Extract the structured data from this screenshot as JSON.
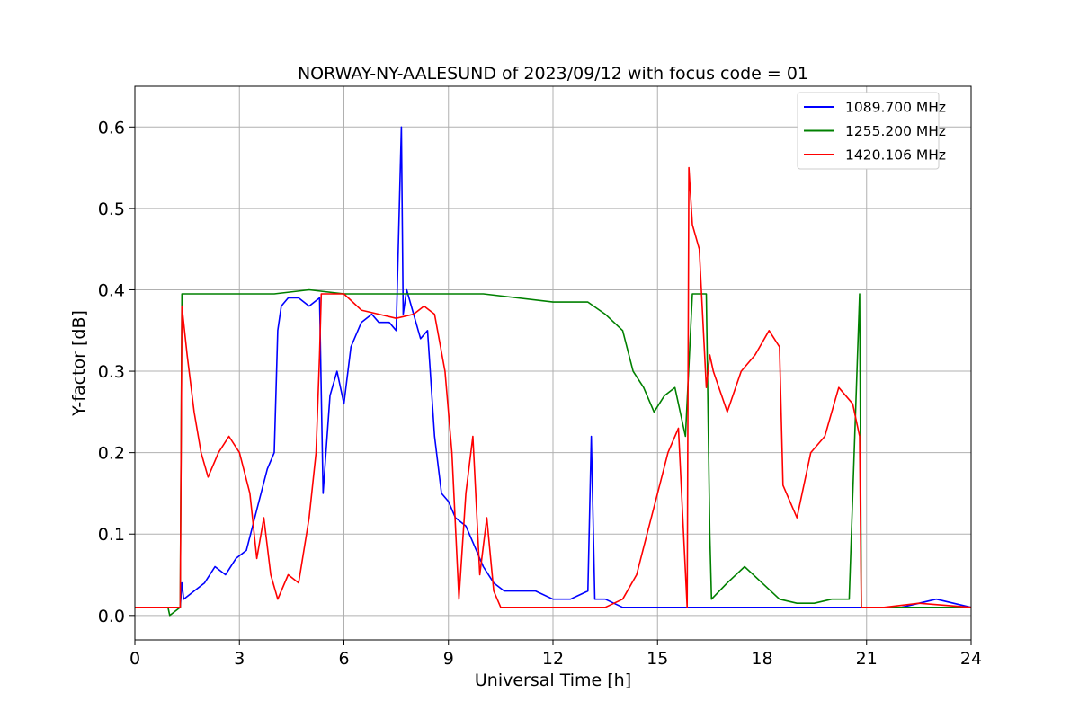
{
  "chart_data": {
    "type": "line",
    "title": "NORWAY-NY-AALESUND of 2023/09/12 with focus code = 01",
    "xlabel": "Universal Time [h]",
    "ylabel": "Y-factor [dB]",
    "xlim": [
      0,
      24
    ],
    "ylim": [
      -0.03,
      0.65
    ],
    "xticks": [
      0,
      3,
      6,
      9,
      12,
      15,
      18,
      21,
      24
    ],
    "xtick_labels": [
      "0",
      "3",
      "6",
      "9",
      "12",
      "15",
      "18",
      "21",
      "24"
    ],
    "yticks": [
      0.0,
      0.1,
      0.2,
      0.3,
      0.4,
      0.5,
      0.6
    ],
    "ytick_labels": [
      "0.0",
      "0.1",
      "0.2",
      "0.3",
      "0.4",
      "0.5",
      "0.6"
    ],
    "grid": true,
    "legend_position": "top-right",
    "series": [
      {
        "name": "1089.700 MHz",
        "color": "#0000ff",
        "x": [
          0,
          1.3,
          1.35,
          1.4,
          1.7,
          2.0,
          2.3,
          2.6,
          2.9,
          3.2,
          3.5,
          3.8,
          4.0,
          4.1,
          4.2,
          4.4,
          4.7,
          5.0,
          5.3,
          5.4,
          5.6,
          5.8,
          6.0,
          6.2,
          6.5,
          6.8,
          7.0,
          7.3,
          7.5,
          7.65,
          7.7,
          7.8,
          8.0,
          8.2,
          8.4,
          8.6,
          8.8,
          9.0,
          9.2,
          9.5,
          9.8,
          10.0,
          10.3,
          10.6,
          11.0,
          11.5,
          12.0,
          12.5,
          13.0,
          13.1,
          13.2,
          13.5,
          14.0,
          15.0,
          16.0,
          16.5,
          17.0,
          18.0,
          19.0,
          20.0,
          21.0,
          22.0,
          23.0,
          24.0
        ],
        "values": [
          0.01,
          0.01,
          0.04,
          0.02,
          0.03,
          0.04,
          0.06,
          0.05,
          0.07,
          0.08,
          0.13,
          0.18,
          0.2,
          0.35,
          0.38,
          0.39,
          0.39,
          0.38,
          0.39,
          0.15,
          0.27,
          0.3,
          0.26,
          0.33,
          0.36,
          0.37,
          0.36,
          0.36,
          0.35,
          0.6,
          0.37,
          0.4,
          0.37,
          0.34,
          0.35,
          0.22,
          0.15,
          0.14,
          0.12,
          0.11,
          0.08,
          0.06,
          0.04,
          0.03,
          0.03,
          0.03,
          0.02,
          0.02,
          0.03,
          0.22,
          0.02,
          0.02,
          0.01,
          0.01,
          0.01,
          0.01,
          0.01,
          0.01,
          0.01,
          0.01,
          0.01,
          0.01,
          0.02,
          0.01
        ]
      },
      {
        "name": "1255.200 MHz",
        "color": "#008000",
        "x": [
          0,
          0.95,
          1.0,
          1.3,
          1.35,
          2.0,
          4.0,
          5.0,
          6.0,
          8.0,
          10.0,
          12.0,
          13.0,
          13.5,
          14.0,
          14.3,
          14.6,
          14.9,
          15.2,
          15.5,
          15.8,
          16.0,
          16.4,
          16.5,
          16.55,
          17.0,
          17.5,
          18.0,
          18.5,
          19.0,
          19.5,
          20.0,
          20.5,
          20.8,
          20.85,
          21.0,
          22.0,
          23.0,
          24.0
        ],
        "values": [
          0.01,
          0.01,
          0.0,
          0.01,
          0.395,
          0.395,
          0.395,
          0.4,
          0.395,
          0.395,
          0.395,
          0.385,
          0.385,
          0.37,
          0.35,
          0.3,
          0.28,
          0.25,
          0.27,
          0.28,
          0.22,
          0.395,
          0.395,
          0.1,
          0.02,
          0.04,
          0.06,
          0.04,
          0.02,
          0.015,
          0.015,
          0.02,
          0.02,
          0.395,
          0.01,
          0.01,
          0.01,
          0.01,
          0.01
        ]
      },
      {
        "name": "1420.106 MHz",
        "color": "#ff0000",
        "x": [
          0,
          1.3,
          1.35,
          1.5,
          1.7,
          1.9,
          2.1,
          2.4,
          2.7,
          3.0,
          3.3,
          3.5,
          3.7,
          3.9,
          4.1,
          4.4,
          4.7,
          5.0,
          5.2,
          5.3,
          5.35,
          5.6,
          6.0,
          6.5,
          7.0,
          7.5,
          8.0,
          8.3,
          8.6,
          8.9,
          9.1,
          9.3,
          9.5,
          9.7,
          9.9,
          10.1,
          10.3,
          10.5,
          11.0,
          12.0,
          13.0,
          13.5,
          14.0,
          14.4,
          14.7,
          15.0,
          15.3,
          15.6,
          15.85,
          15.9,
          16.0,
          16.2,
          16.4,
          16.5,
          16.6,
          17.0,
          17.4,
          17.8,
          18.2,
          18.5,
          18.6,
          19.0,
          19.4,
          19.8,
          20.2,
          20.6,
          20.8,
          20.85,
          21.5,
          22.5,
          24.0
        ],
        "values": [
          0.01,
          0.01,
          0.38,
          0.32,
          0.25,
          0.2,
          0.17,
          0.2,
          0.22,
          0.2,
          0.15,
          0.07,
          0.12,
          0.05,
          0.02,
          0.05,
          0.04,
          0.12,
          0.2,
          0.32,
          0.395,
          0.395,
          0.395,
          0.375,
          0.37,
          0.365,
          0.37,
          0.38,
          0.37,
          0.3,
          0.2,
          0.02,
          0.15,
          0.22,
          0.05,
          0.12,
          0.03,
          0.01,
          0.01,
          0.01,
          0.01,
          0.01,
          0.02,
          0.05,
          0.1,
          0.15,
          0.2,
          0.23,
          0.01,
          0.55,
          0.48,
          0.45,
          0.28,
          0.32,
          0.3,
          0.25,
          0.3,
          0.32,
          0.35,
          0.33,
          0.16,
          0.12,
          0.2,
          0.22,
          0.28,
          0.26,
          0.22,
          0.01,
          0.01,
          0.015,
          0.01
        ]
      }
    ]
  }
}
